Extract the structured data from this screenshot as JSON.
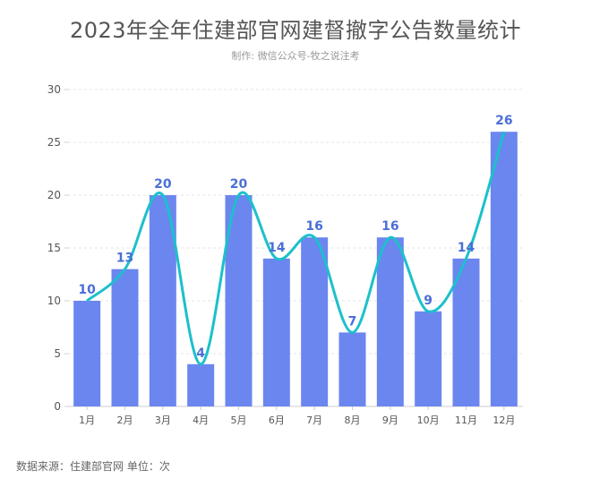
{
  "chart_data": {
    "type": "bar",
    "title": "2023年全年住建部官网建督撤字公告数量统计",
    "subtitle": "制作: 微信公众号-牧之说注考",
    "categories": [
      "1月",
      "2月",
      "3月",
      "4月",
      "5月",
      "6月",
      "7月",
      "8月",
      "9月",
      "10月",
      "11月",
      "12月"
    ],
    "values": [
      10,
      13,
      20,
      4,
      20,
      14,
      16,
      7,
      16,
      9,
      14,
      26
    ],
    "overlay_line": {
      "type": "smooth-line",
      "values": [
        10,
        13,
        20,
        4,
        20,
        14,
        16,
        7,
        16,
        9,
        14,
        26
      ]
    },
    "yticks": [
      "0",
      "5",
      "10",
      "15",
      "20",
      "25",
      "30"
    ],
    "ylim": [
      0,
      30
    ],
    "xlabel": "",
    "ylabel": "",
    "grid": "horizontal dashed",
    "data_labels": true,
    "colors": {
      "bar": "#6b86ef",
      "line": "#1cc0cc",
      "label": "#4a6fd6"
    }
  },
  "footer": "数据来源：住建部官网    单位：次"
}
